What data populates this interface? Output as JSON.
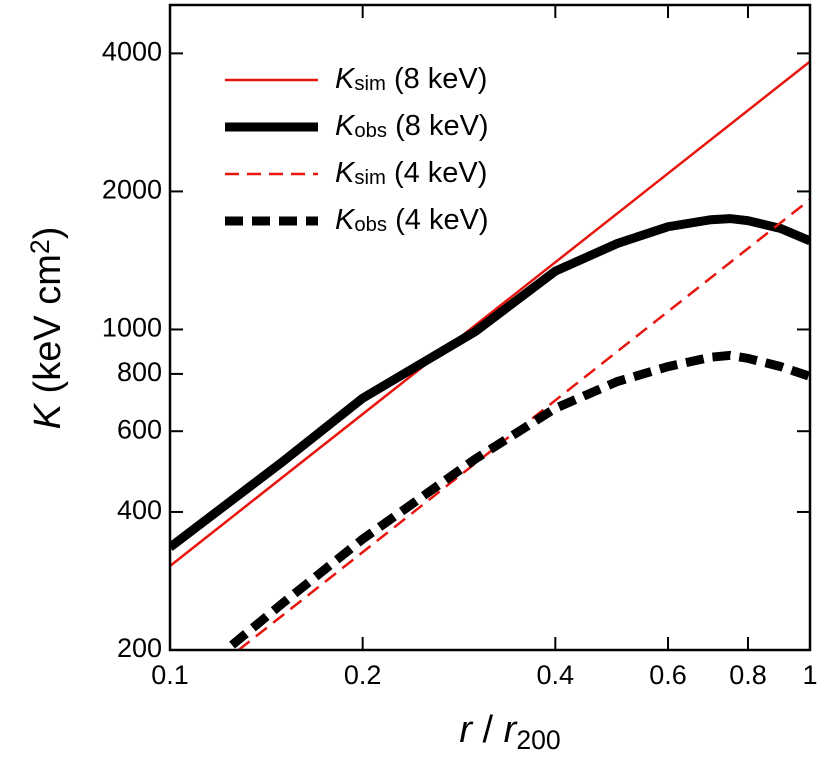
{
  "chart_data": {
    "type": "line",
    "x_label": "r / r200",
    "y_label": "K (keV cm2)",
    "xscale": "log",
    "yscale": "log",
    "xlim": [
      0.1,
      1
    ],
    "ylim": [
      200,
      5100
    ],
    "xticks": [
      0.1,
      0.2,
      0.4,
      0.6,
      0.8,
      1
    ],
    "yticks": [
      200,
      400,
      600,
      800,
      1000,
      2000,
      4000
    ],
    "legend": "upper left",
    "series": [
      {
        "name": "Ksim (8 keV)",
        "color": "#e8150f",
        "linestyle": "solid",
        "linewidth": 2.5,
        "x": [
          0.1,
          1
        ],
        "values": [
          305,
          3840
        ]
      },
      {
        "name": "Kobs (8 keV)",
        "color": "#000000",
        "linestyle": "solid",
        "linewidth": 9,
        "x": [
          0.1,
          0.15,
          0.2,
          0.3,
          0.4,
          0.5,
          0.6,
          0.7,
          0.75,
          0.8,
          0.9,
          1
        ],
        "values": [
          335,
          515,
          708,
          990,
          1340,
          1540,
          1675,
          1735,
          1745,
          1727,
          1660,
          1560
        ]
      },
      {
        "name": "Ksim (4 keV)",
        "color": "#e8150f",
        "linestyle": "dashed",
        "linewidth": 2.5,
        "x": [
          0.128,
          1
        ],
        "values": [
          200,
          1920
        ]
      },
      {
        "name": "Kobs (4 keV)",
        "color": "#000000",
        "linestyle": "dashed",
        "linewidth": 9,
        "x": [
          0.125,
          0.15,
          0.2,
          0.3,
          0.4,
          0.5,
          0.6,
          0.7,
          0.75,
          0.8,
          0.9,
          1
        ],
        "values": [
          205,
          253,
          349,
          522,
          673,
          770,
          830,
          870,
          878,
          865,
          830,
          790
        ]
      }
    ]
  }
}
